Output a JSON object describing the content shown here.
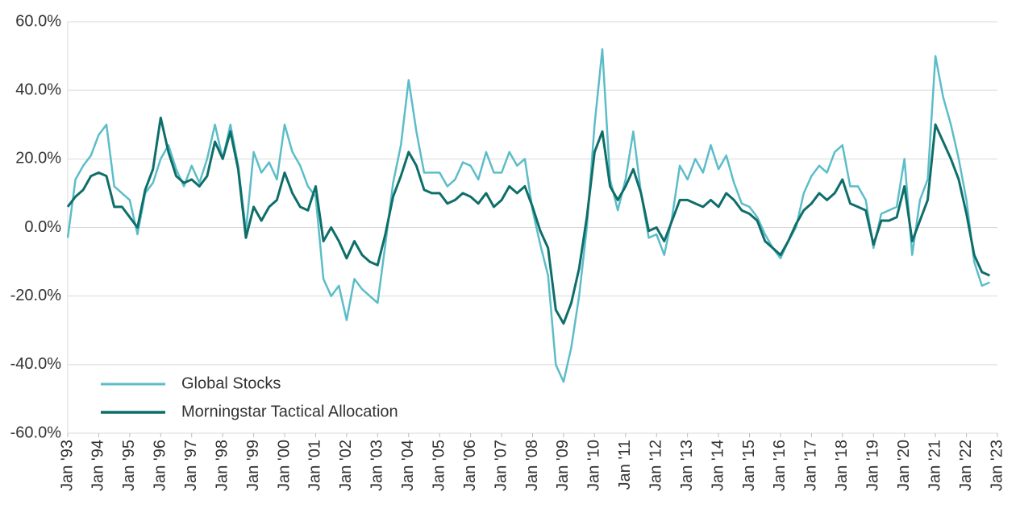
{
  "chart_data": {
    "type": "line",
    "x": [
      1993,
      1993.25,
      1993.5,
      1993.75,
      1994,
      1994.25,
      1994.5,
      1994.75,
      1995,
      1995.25,
      1995.5,
      1995.75,
      1996,
      1996.25,
      1996.5,
      1996.75,
      1997,
      1997.25,
      1997.5,
      1997.75,
      1998,
      1998.25,
      1998.5,
      1998.75,
      1999,
      1999.25,
      1999.5,
      1999.75,
      2000,
      2000.25,
      2000.5,
      2000.75,
      2001,
      2001.25,
      2001.5,
      2001.75,
      2002,
      2002.25,
      2002.5,
      2002.75,
      2003,
      2003.25,
      2003.5,
      2003.75,
      2004,
      2004.25,
      2004.5,
      2004.75,
      2005,
      2005.25,
      2005.5,
      2005.75,
      2006,
      2006.25,
      2006.5,
      2006.75,
      2007,
      2007.25,
      2007.5,
      2007.75,
      2008,
      2008.25,
      2008.5,
      2008.75,
      2009,
      2009.25,
      2009.5,
      2009.75,
      2010,
      2010.25,
      2010.5,
      2010.75,
      2011,
      2011.25,
      2011.5,
      2011.75,
      2012,
      2012.25,
      2012.5,
      2012.75,
      2013,
      2013.25,
      2013.5,
      2013.75,
      2014,
      2014.25,
      2014.5,
      2014.75,
      2015,
      2015.25,
      2015.5,
      2015.75,
      2016,
      2016.25,
      2016.5,
      2016.75,
      2017,
      2017.25,
      2017.5,
      2017.75,
      2018,
      2018.25,
      2018.5,
      2018.75,
      2019,
      2019.25,
      2019.5,
      2019.75,
      2020,
      2020.25,
      2020.5,
      2020.75,
      2021,
      2021.25,
      2021.5,
      2021.75,
      2022,
      2022.25,
      2022.5,
      2022.75
    ],
    "series": [
      {
        "name": "Global Stocks",
        "color": "#5cbdc8",
        "values": [
          -3,
          14,
          18,
          21,
          27,
          30,
          12,
          10,
          8,
          -2,
          10,
          13,
          20,
          24,
          17,
          12,
          18,
          13,
          20,
          30,
          20,
          30,
          18,
          -1,
          22,
          16,
          19,
          14,
          30,
          22,
          18,
          12,
          9,
          -15,
          -20,
          -17,
          -27,
          -15,
          -18,
          -20,
          -22,
          -5,
          13,
          24,
          43,
          28,
          16,
          16,
          16,
          12,
          14,
          19,
          18,
          14,
          22,
          16,
          16,
          22,
          18,
          20,
          5,
          -5,
          -14,
          -40,
          -45,
          -35,
          -20,
          0,
          30,
          52,
          14,
          5,
          14,
          28,
          10,
          -3,
          -2,
          -8,
          3,
          18,
          14,
          20,
          16,
          24,
          17,
          21,
          13,
          7,
          6,
          3,
          -2,
          -6,
          -9,
          -4,
          0,
          10,
          15,
          18,
          16,
          22,
          24,
          12,
          12,
          8,
          -6,
          4,
          5,
          6,
          20,
          -8,
          8,
          14,
          50,
          38,
          30,
          20,
          8,
          -10,
          -17,
          -16
        ]
      },
      {
        "name": "Morningstar Tactical Allocation",
        "color": "#0e6e69",
        "values": [
          6,
          9,
          11,
          15,
          16,
          15,
          6,
          6,
          3,
          0,
          11,
          17,
          32,
          22,
          15,
          13,
          14,
          12,
          15,
          25,
          20,
          28,
          17,
          -3,
          6,
          2,
          6,
          8,
          16,
          10,
          6,
          5,
          12,
          -4,
          0,
          -4,
          -9,
          -4,
          -8,
          -10,
          -11,
          -2,
          9,
          15,
          22,
          18,
          11,
          10,
          10,
          7,
          8,
          10,
          9,
          7,
          10,
          6,
          8,
          12,
          10,
          12,
          6,
          -1,
          -6,
          -24,
          -28,
          -22,
          -12,
          3,
          22,
          28,
          12,
          8,
          12,
          17,
          10,
          -1,
          0,
          -4,
          2,
          8,
          8,
          7,
          6,
          8,
          6,
          10,
          8,
          5,
          4,
          2,
          -4,
          -6,
          -8,
          -4,
          1,
          5,
          7,
          10,
          8,
          10,
          14,
          7,
          6,
          5,
          -5,
          2,
          2,
          3,
          12,
          -4,
          2,
          8,
          30,
          25,
          20,
          14,
          4,
          -8,
          -13,
          -14
        ]
      }
    ],
    "ylim": [
      -60,
      60
    ],
    "yticks": [
      {
        "value": -60,
        "label": "-60.0%"
      },
      {
        "value": -40,
        "label": "-40.0%"
      },
      {
        "value": -20,
        "label": "-20.0%"
      },
      {
        "value": 0,
        "label": "0.0%"
      },
      {
        "value": 20,
        "label": "20.0%"
      },
      {
        "value": 40,
        "label": "40.0%"
      },
      {
        "value": 60,
        "label": "60.0%"
      }
    ],
    "xlim": [
      1993,
      2023
    ],
    "xticks": [
      {
        "value": 1993,
        "label": "Jan '93"
      },
      {
        "value": 1994,
        "label": "Jan '94"
      },
      {
        "value": 1995,
        "label": "Jan '95"
      },
      {
        "value": 1996,
        "label": "Jan '96"
      },
      {
        "value": 1997,
        "label": "Jan '97"
      },
      {
        "value": 1998,
        "label": "Jan '98"
      },
      {
        "value": 1999,
        "label": "Jan '99"
      },
      {
        "value": 2000,
        "label": "Jan '00"
      },
      {
        "value": 2001,
        "label": "Jan '01"
      },
      {
        "value": 2002,
        "label": "Jan '02"
      },
      {
        "value": 2003,
        "label": "Jan '03"
      },
      {
        "value": 2004,
        "label": "Jan '04"
      },
      {
        "value": 2005,
        "label": "Jan '05"
      },
      {
        "value": 2006,
        "label": "Jan '06"
      },
      {
        "value": 2007,
        "label": "Jan '07"
      },
      {
        "value": 2008,
        "label": "Jan '08"
      },
      {
        "value": 2009,
        "label": "Jan '09"
      },
      {
        "value": 2010,
        "label": "Jan '10"
      },
      {
        "value": 2011,
        "label": "Jan '11"
      },
      {
        "value": 2012,
        "label": "Jan '12"
      },
      {
        "value": 2013,
        "label": "Jan '13"
      },
      {
        "value": 2014,
        "label": "Jan '14"
      },
      {
        "value": 2015,
        "label": "Jan '15"
      },
      {
        "value": 2016,
        "label": "Jan '16"
      },
      {
        "value": 2017,
        "label": "Jan '17"
      },
      {
        "value": 2018,
        "label": "Jan '18"
      },
      {
        "value": 2019,
        "label": "Jan '19"
      },
      {
        "value": 2020,
        "label": "Jan '20"
      },
      {
        "value": 2021,
        "label": "Jan '21"
      },
      {
        "value": 2022,
        "label": "Jan '22"
      },
      {
        "value": 2023,
        "label": "Jan '23"
      }
    ],
    "grid": true,
    "legend": "lower left"
  }
}
